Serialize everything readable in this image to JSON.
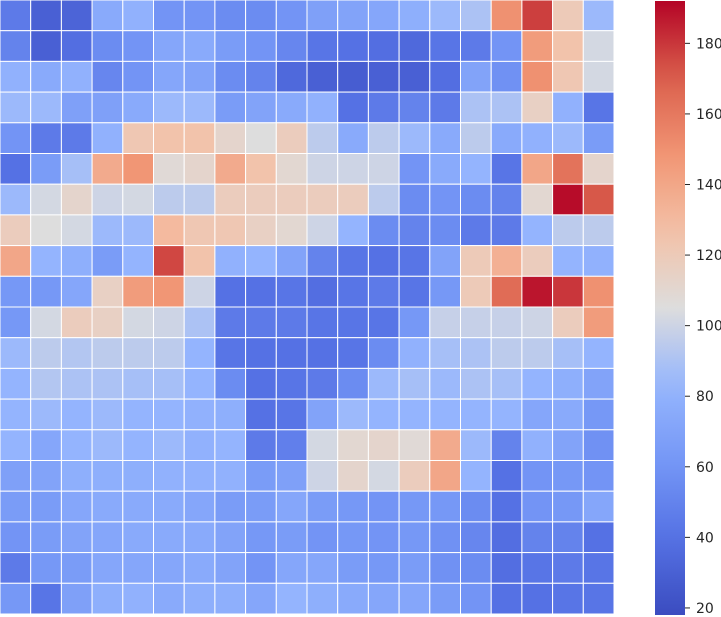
{
  "chart_data": {
    "type": "heatmap",
    "colormap": "coolwarm",
    "vmin": 18,
    "vmax": 192,
    "grid_color": "#ffffff",
    "colorbar": {
      "ticks": [
        20,
        40,
        60,
        80,
        100,
        120,
        140,
        160,
        180
      ]
    },
    "values": [
      [
        45,
        30,
        32,
        75,
        80,
        60,
        60,
        55,
        55,
        60,
        68,
        70,
        72,
        78,
        85,
        90,
        150,
        178,
        120,
        85
      ],
      [
        50,
        30,
        38,
        55,
        60,
        72,
        75,
        65,
        60,
        52,
        42,
        40,
        38,
        35,
        42,
        45,
        60,
        145,
        125,
        102
      ],
      [
        80,
        75,
        80,
        52,
        60,
        72,
        70,
        55,
        50,
        35,
        30,
        28,
        30,
        30,
        38,
        70,
        58,
        150,
        122,
        102
      ],
      [
        85,
        85,
        68,
        68,
        75,
        85,
        85,
        65,
        70,
        75,
        80,
        40,
        45,
        50,
        45,
        90,
        90,
        115,
        80,
        42
      ],
      [
        60,
        45,
        45,
        80,
        122,
        125,
        125,
        112,
        105,
        118,
        95,
        75,
        95,
        85,
        75,
        95,
        75,
        80,
        85,
        65
      ],
      [
        40,
        65,
        88,
        138,
        148,
        108,
        112,
        138,
        125,
        110,
        100,
        100,
        100,
        60,
        75,
        82,
        42,
        140,
        162,
        112
      ],
      [
        85,
        102,
        112,
        100,
        102,
        95,
        95,
        118,
        118,
        118,
        118,
        118,
        95,
        55,
        60,
        55,
        50,
        110,
        190,
        172
      ],
      [
        118,
        105,
        102,
        85,
        85,
        130,
        122,
        122,
        115,
        110,
        100,
        82,
        55,
        50,
        55,
        45,
        45,
        82,
        95,
        95
      ],
      [
        140,
        82,
        78,
        65,
        82,
        176,
        125,
        80,
        82,
        70,
        50,
        42,
        40,
        42,
        70,
        120,
        135,
        118,
        82,
        80
      ],
      [
        62,
        62,
        72,
        115,
        145,
        148,
        100,
        40,
        40,
        42,
        38,
        42,
        45,
        42,
        62,
        120,
        165,
        188,
        180,
        150
      ],
      [
        62,
        102,
        118,
        115,
        102,
        100,
        90,
        45,
        45,
        45,
        42,
        42,
        42,
        62,
        98,
        98,
        98,
        100,
        118,
        145
      ],
      [
        85,
        95,
        92,
        95,
        95,
        95,
        82,
        42,
        40,
        40,
        40,
        42,
        55,
        80,
        88,
        90,
        95,
        95,
        88,
        82
      ],
      [
        82,
        92,
        90,
        90,
        88,
        88,
        82,
        55,
        40,
        42,
        45,
        55,
        85,
        88,
        85,
        90,
        88,
        82,
        78,
        70
      ],
      [
        82,
        85,
        82,
        85,
        82,
        82,
        80,
        78,
        40,
        42,
        70,
        85,
        82,
        82,
        82,
        82,
        82,
        72,
        75,
        62
      ],
      [
        82,
        72,
        82,
        85,
        82,
        85,
        80,
        82,
        45,
        48,
        102,
        110,
        112,
        108,
        138,
        85,
        50,
        80,
        70,
        58
      ],
      [
        68,
        70,
        78,
        78,
        78,
        80,
        80,
        80,
        65,
        68,
        100,
        112,
        102,
        118,
        140,
        82,
        40,
        60,
        62,
        60
      ],
      [
        65,
        65,
        72,
        75,
        75,
        75,
        72,
        65,
        65,
        72,
        65,
        62,
        60,
        62,
        62,
        55,
        40,
        60,
        62,
        72
      ],
      [
        60,
        65,
        70,
        72,
        75,
        75,
        75,
        70,
        62,
        65,
        60,
        62,
        60,
        62,
        58,
        52,
        38,
        50,
        50,
        40
      ],
      [
        45,
        62,
        65,
        72,
        72,
        72,
        75,
        70,
        60,
        72,
        72,
        65,
        62,
        65,
        58,
        55,
        38,
        42,
        45,
        42
      ],
      [
        62,
        42,
        68,
        78,
        80,
        75,
        78,
        78,
        72,
        82,
        78,
        75,
        72,
        72,
        65,
        60,
        40,
        40,
        42,
        42
      ]
    ]
  }
}
